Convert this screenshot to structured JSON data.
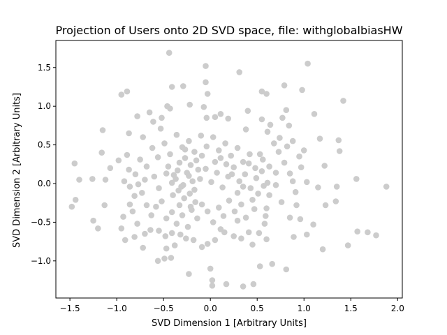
{
  "chart_data": {
    "type": "scatter",
    "title": "Projection of Users onto 2D SVD space, file: withglobalbiasHW",
    "xlabel": "SVD Dimension 1 [Arbitrary Units]",
    "ylabel": "SVD Dimension 2 [Arbitrary Units]",
    "xlim": [
      -1.65,
      2.05
    ],
    "ylim": [
      -1.48,
      1.85
    ],
    "xticks": [
      -1.5,
      -1.0,
      -0.5,
      0.0,
      0.5,
      1.0,
      1.5,
      2.0
    ],
    "xtick_labels": [
      "−1.5",
      "−1.0",
      "−0.5",
      "0.0",
      "0.5",
      "1.0",
      "1.5",
      "2.0"
    ],
    "yticks": [
      -1.0,
      -0.5,
      0.0,
      0.5,
      1.0,
      1.5
    ],
    "ytick_labels": [
      "−1.0",
      "−0.5",
      "0.0",
      "0.5",
      "1.0",
      "1.5"
    ],
    "grid": false,
    "marker_color": "#cccccc",
    "series": [
      {
        "points": [
          [
            -0.44,
            1.69
          ],
          [
            -0.05,
            1.52
          ],
          [
            0.31,
            1.44
          ],
          [
            1.04,
            1.55
          ],
          [
            -0.41,
            1.25
          ],
          [
            -0.29,
            1.26
          ],
          [
            -0.05,
            1.31
          ],
          [
            -0.95,
            1.15
          ],
          [
            -0.89,
            1.19
          ],
          [
            0.79,
            1.27
          ],
          [
            0.55,
            1.19
          ],
          [
            0.6,
            1.16
          ],
          [
            0.98,
            1.21
          ],
          [
            -0.03,
            1.16
          ],
          [
            1.42,
            1.07
          ],
          [
            -0.46,
            1.0
          ],
          [
            -0.43,
            0.97
          ],
          [
            -0.22,
            1.02
          ],
          [
            -0.07,
            0.99
          ],
          [
            0.4,
            0.94
          ],
          [
            0.11,
            0.9
          ],
          [
            -0.65,
            0.92
          ],
          [
            0.81,
            0.95
          ],
          [
            1.11,
            0.9
          ],
          [
            -0.78,
            0.87
          ],
          [
            -0.61,
            0.8
          ],
          [
            -0.52,
            0.85
          ],
          [
            -0.04,
            0.85
          ],
          [
            0.05,
            0.86
          ],
          [
            0.19,
            0.84
          ],
          [
            0.55,
            0.83
          ],
          [
            0.77,
            0.85
          ],
          [
            0.64,
            0.76
          ],
          [
            0.84,
            0.75
          ],
          [
            -0.87,
            0.65
          ],
          [
            -0.72,
            0.6
          ],
          [
            -0.53,
            0.71
          ],
          [
            0.38,
            0.7
          ],
          [
            0.61,
            0.67
          ],
          [
            1.17,
            0.58
          ],
          [
            1.37,
            0.56
          ],
          [
            1.38,
            0.42
          ],
          [
            -1.15,
            0.69
          ],
          [
            -1.16,
            0.4
          ],
          [
            -0.89,
            0.37
          ],
          [
            -0.98,
            0.3
          ],
          [
            -1.07,
            0.2
          ],
          [
            -1.12,
            0.05
          ],
          [
            -1.26,
            0.06
          ],
          [
            -1.4,
            0.05
          ],
          [
            -1.45,
            0.26
          ],
          [
            -1.44,
            -0.21
          ],
          [
            -1.48,
            -0.3
          ],
          [
            -1.13,
            -0.28
          ],
          [
            -1.25,
            -0.48
          ],
          [
            -1.2,
            -0.58
          ],
          [
            -0.93,
            -0.43
          ],
          [
            -0.95,
            -0.58
          ],
          [
            -0.91,
            -0.73
          ],
          [
            -0.81,
            -0.69
          ],
          [
            -0.72,
            -0.83
          ],
          [
            -0.47,
            -0.84
          ],
          [
            -0.56,
            -1.0
          ],
          [
            -0.49,
            -0.97
          ],
          [
            -0.42,
            -0.96
          ],
          [
            -0.23,
            -1.17
          ],
          [
            0.0,
            -1.1
          ],
          [
            0.02,
            -1.25
          ],
          [
            0.02,
            -1.32
          ],
          [
            0.17,
            -1.3
          ],
          [
            0.35,
            -1.33
          ],
          [
            0.46,
            -1.3
          ],
          [
            0.53,
            -1.07
          ],
          [
            0.81,
            -1.11
          ],
          [
            0.66,
            -1.04
          ],
          [
            1.2,
            -0.85
          ],
          [
            1.47,
            -0.8
          ],
          [
            1.57,
            -0.62
          ],
          [
            1.68,
            -0.63
          ],
          [
            1.77,
            -0.67
          ],
          [
            1.88,
            -0.04
          ],
          [
            1.56,
            0.06
          ],
          [
            1.35,
            -0.04
          ],
          [
            1.34,
            -0.23
          ],
          [
            1.23,
            -0.28
          ],
          [
            1.15,
            -0.05
          ],
          [
            1.03,
            0.02
          ],
          [
            1.0,
            0.43
          ],
          [
            0.97,
            0.21
          ],
          [
            1.22,
            0.23
          ],
          [
            0.96,
            -0.46
          ],
          [
            1.03,
            -0.66
          ],
          [
            1.1,
            -0.53
          ],
          [
            0.89,
            -0.69
          ],
          [
            0.85,
            -0.44
          ],
          [
            0.88,
            0.03
          ],
          [
            0.6,
            -0.32
          ],
          [
            0.58,
            -0.52
          ],
          [
            0.52,
            -0.64
          ],
          [
            0.6,
            -0.72
          ],
          [
            0.45,
            -0.79
          ],
          [
            0.41,
            -0.63
          ],
          [
            0.33,
            -0.71
          ],
          [
            0.29,
            -0.48
          ],
          [
            0.25,
            -0.68
          ],
          [
            0.15,
            -0.63
          ],
          [
            0.11,
            -0.59
          ],
          [
            0.05,
            -0.73
          ],
          [
            -0.03,
            -0.78
          ],
          [
            -0.09,
            -0.82
          ],
          [
            -0.18,
            -0.73
          ],
          [
            -0.26,
            -0.71
          ],
          [
            -0.32,
            -0.66
          ],
          [
            -0.38,
            -0.8
          ],
          [
            -0.41,
            -0.64
          ],
          [
            -0.48,
            -0.68
          ],
          [
            -0.55,
            -0.61
          ],
          [
            -0.64,
            -0.6
          ],
          [
            -0.7,
            -0.65
          ],
          [
            -0.78,
            -0.52
          ],
          [
            -0.83,
            -0.36
          ],
          [
            -0.86,
            -0.27
          ],
          [
            -0.81,
            -0.16
          ],
          [
            -0.73,
            -0.12
          ],
          [
            -0.68,
            -0.28
          ],
          [
            -0.63,
            -0.41
          ],
          [
            -0.58,
            -0.3
          ],
          [
            -0.52,
            -0.23
          ],
          [
            -0.47,
            -0.45
          ],
          [
            -0.41,
            -0.37
          ],
          [
            -0.36,
            -0.52
          ],
          [
            -0.3,
            -0.41
          ],
          [
            -0.24,
            -0.56
          ],
          [
            -0.2,
            -0.34
          ],
          [
            -0.14,
            -0.45
          ],
          [
            -0.09,
            -0.27
          ],
          [
            -0.03,
            -0.36
          ],
          [
            0.03,
            -0.5
          ],
          [
            0.09,
            -0.31
          ],
          [
            0.14,
            -0.42
          ],
          [
            0.2,
            -0.22
          ],
          [
            0.26,
            -0.36
          ],
          [
            0.33,
            -0.27
          ],
          [
            0.38,
            -0.44
          ],
          [
            0.45,
            -0.21
          ],
          [
            0.51,
            -0.13
          ],
          [
            0.57,
            -0.03
          ],
          [
            0.63,
            -0.15
          ],
          [
            0.7,
            -0.02
          ],
          [
            0.76,
            -0.24
          ],
          [
            0.7,
            0.14
          ],
          [
            0.63,
            0.22
          ],
          [
            0.56,
            0.31
          ],
          [
            0.48,
            0.2
          ],
          [
            0.42,
            0.38
          ],
          [
            0.35,
            0.28
          ],
          [
            0.29,
            0.46
          ],
          [
            0.22,
            0.36
          ],
          [
            0.16,
            0.52
          ],
          [
            0.09,
            0.43
          ],
          [
            0.03,
            0.6
          ],
          [
            -0.04,
            0.48
          ],
          [
            -0.1,
            0.62
          ],
          [
            -0.17,
            0.41
          ],
          [
            -0.23,
            0.55
          ],
          [
            -0.3,
            0.47
          ],
          [
            -0.36,
            0.63
          ],
          [
            -0.43,
            0.38
          ],
          [
            -0.49,
            0.52
          ],
          [
            -0.56,
            0.34
          ],
          [
            -0.62,
            0.46
          ],
          [
            -0.68,
            0.22
          ],
          [
            -0.75,
            0.31
          ],
          [
            -0.8,
            0.12
          ],
          [
            -0.87,
            0.18
          ],
          [
            -0.92,
            0.03
          ],
          [
            -0.86,
            -0.04
          ],
          [
            -0.77,
            -0.01
          ],
          [
            -0.7,
            0.05
          ],
          [
            -0.6,
            0.09
          ],
          [
            -0.55,
            -0.06
          ],
          [
            -0.47,
            0.13
          ],
          [
            -0.41,
            0.01
          ],
          [
            -0.35,
            0.17
          ],
          [
            -0.29,
            -0.02
          ],
          [
            -0.23,
            0.1
          ],
          [
            -0.17,
            -0.08
          ],
          [
            -0.11,
            0.06
          ],
          [
            -0.05,
            0.19
          ],
          [
            0.01,
            0.02
          ],
          [
            0.07,
            0.14
          ],
          [
            0.13,
            -0.05
          ],
          [
            0.19,
            0.09
          ],
          [
            0.25,
            0.21
          ],
          [
            0.31,
            0.03
          ],
          [
            0.37,
            0.12
          ],
          [
            0.43,
            -0.06
          ],
          [
            0.49,
            0.07
          ],
          [
            0.55,
            0.16
          ],
          [
            0.61,
            0.01
          ],
          [
            -0.33,
            0.27
          ],
          [
            -0.27,
            0.33
          ],
          [
            -0.21,
            0.24
          ],
          [
            -0.15,
            0.3
          ],
          [
            -0.09,
            0.36
          ],
          [
            -0.4,
            -0.15
          ],
          [
            -0.34,
            -0.09
          ],
          [
            -0.28,
            -0.19
          ],
          [
            -0.22,
            -0.13
          ],
          [
            -0.16,
            -0.24
          ],
          [
            -0.37,
            0.06
          ],
          [
            -0.31,
            -0.04
          ],
          [
            -0.25,
            0.14
          ],
          [
            -0.19,
            0.03
          ],
          [
            -0.13,
            0.18
          ],
          [
            -0.45,
            0.22
          ],
          [
            -0.39,
            0.11
          ],
          [
            -0.33,
            -0.28
          ],
          [
            -0.27,
            0.44
          ],
          [
            -0.21,
            -0.3
          ],
          [
            0.05,
            0.28
          ],
          [
            0.11,
            0.33
          ],
          [
            0.17,
            0.25
          ],
          [
            0.23,
            0.12
          ],
          [
            0.29,
            -0.12
          ],
          [
            0.35,
            -0.04
          ],
          [
            0.41,
            0.26
          ],
          [
            0.47,
            -0.33
          ],
          [
            0.53,
            0.38
          ],
          [
            0.59,
            -0.42
          ],
          [
            0.73,
            0.41
          ],
          [
            0.79,
            0.27
          ],
          [
            0.85,
            0.13
          ],
          [
            0.91,
            -0.11
          ],
          [
            0.95,
            0.35
          ],
          [
            0.68,
            0.52
          ],
          [
            0.74,
            0.59
          ],
          [
            0.82,
            0.48
          ],
          [
            0.88,
            0.55
          ],
          [
            0.92,
            -0.28
          ]
        ]
      }
    ]
  }
}
